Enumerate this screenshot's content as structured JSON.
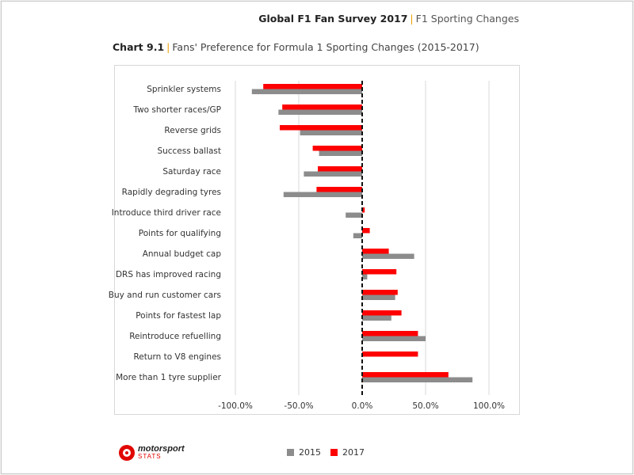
{
  "header": {
    "title": "Global F1 Fan Survey 2017",
    "separator": "|",
    "subtitle": "F1 Sporting Changes"
  },
  "chart_title": {
    "number": "Chart 9.1",
    "separator": "|",
    "text": "Fans' Preference for Formula 1 Sporting Changes (2015-2017)"
  },
  "logo": {
    "line1": "motorsport",
    "line2": "STATS"
  },
  "colors": {
    "s2015": "#8c8c8c",
    "s2017": "#ff0000",
    "grid": "#d9d9d9",
    "zero": "#111111"
  },
  "chart_data": {
    "type": "bar",
    "orientation": "horizontal",
    "categories": [
      "Sprinkler systems",
      "Two shorter races/GP",
      "Reverse grids",
      "Success ballast",
      "Saturday race",
      "Rapidly degrading tyres",
      "Introduce third driver race",
      "Points for qualifying",
      "Annual budget cap",
      "DRS has improved racing",
      "Buy and run customer cars",
      "Points for fastest lap",
      "Reintroduce refuelling",
      "Return to V8 engines",
      "More than 1 tyre supplier"
    ],
    "series": [
      {
        "name": "2015",
        "values": [
          -87,
          -66,
          -49,
          -34,
          -46,
          -62,
          -13,
          -7,
          41,
          4,
          26,
          23,
          50,
          0,
          87
        ]
      },
      {
        "name": "2017",
        "values": [
          -78,
          -63,
          -65,
          -39,
          -35,
          -36,
          2,
          6,
          21,
          27,
          28,
          31,
          44,
          44,
          68
        ]
      }
    ],
    "xlim": [
      -100,
      100
    ],
    "xticks": [
      "-100.0%",
      "-50.0%",
      "0.0%",
      "50.0%",
      "100.0%"
    ],
    "xtick_values": [
      -100,
      -50,
      0,
      50,
      100
    ],
    "grid": true,
    "legend_position": "bottom"
  }
}
